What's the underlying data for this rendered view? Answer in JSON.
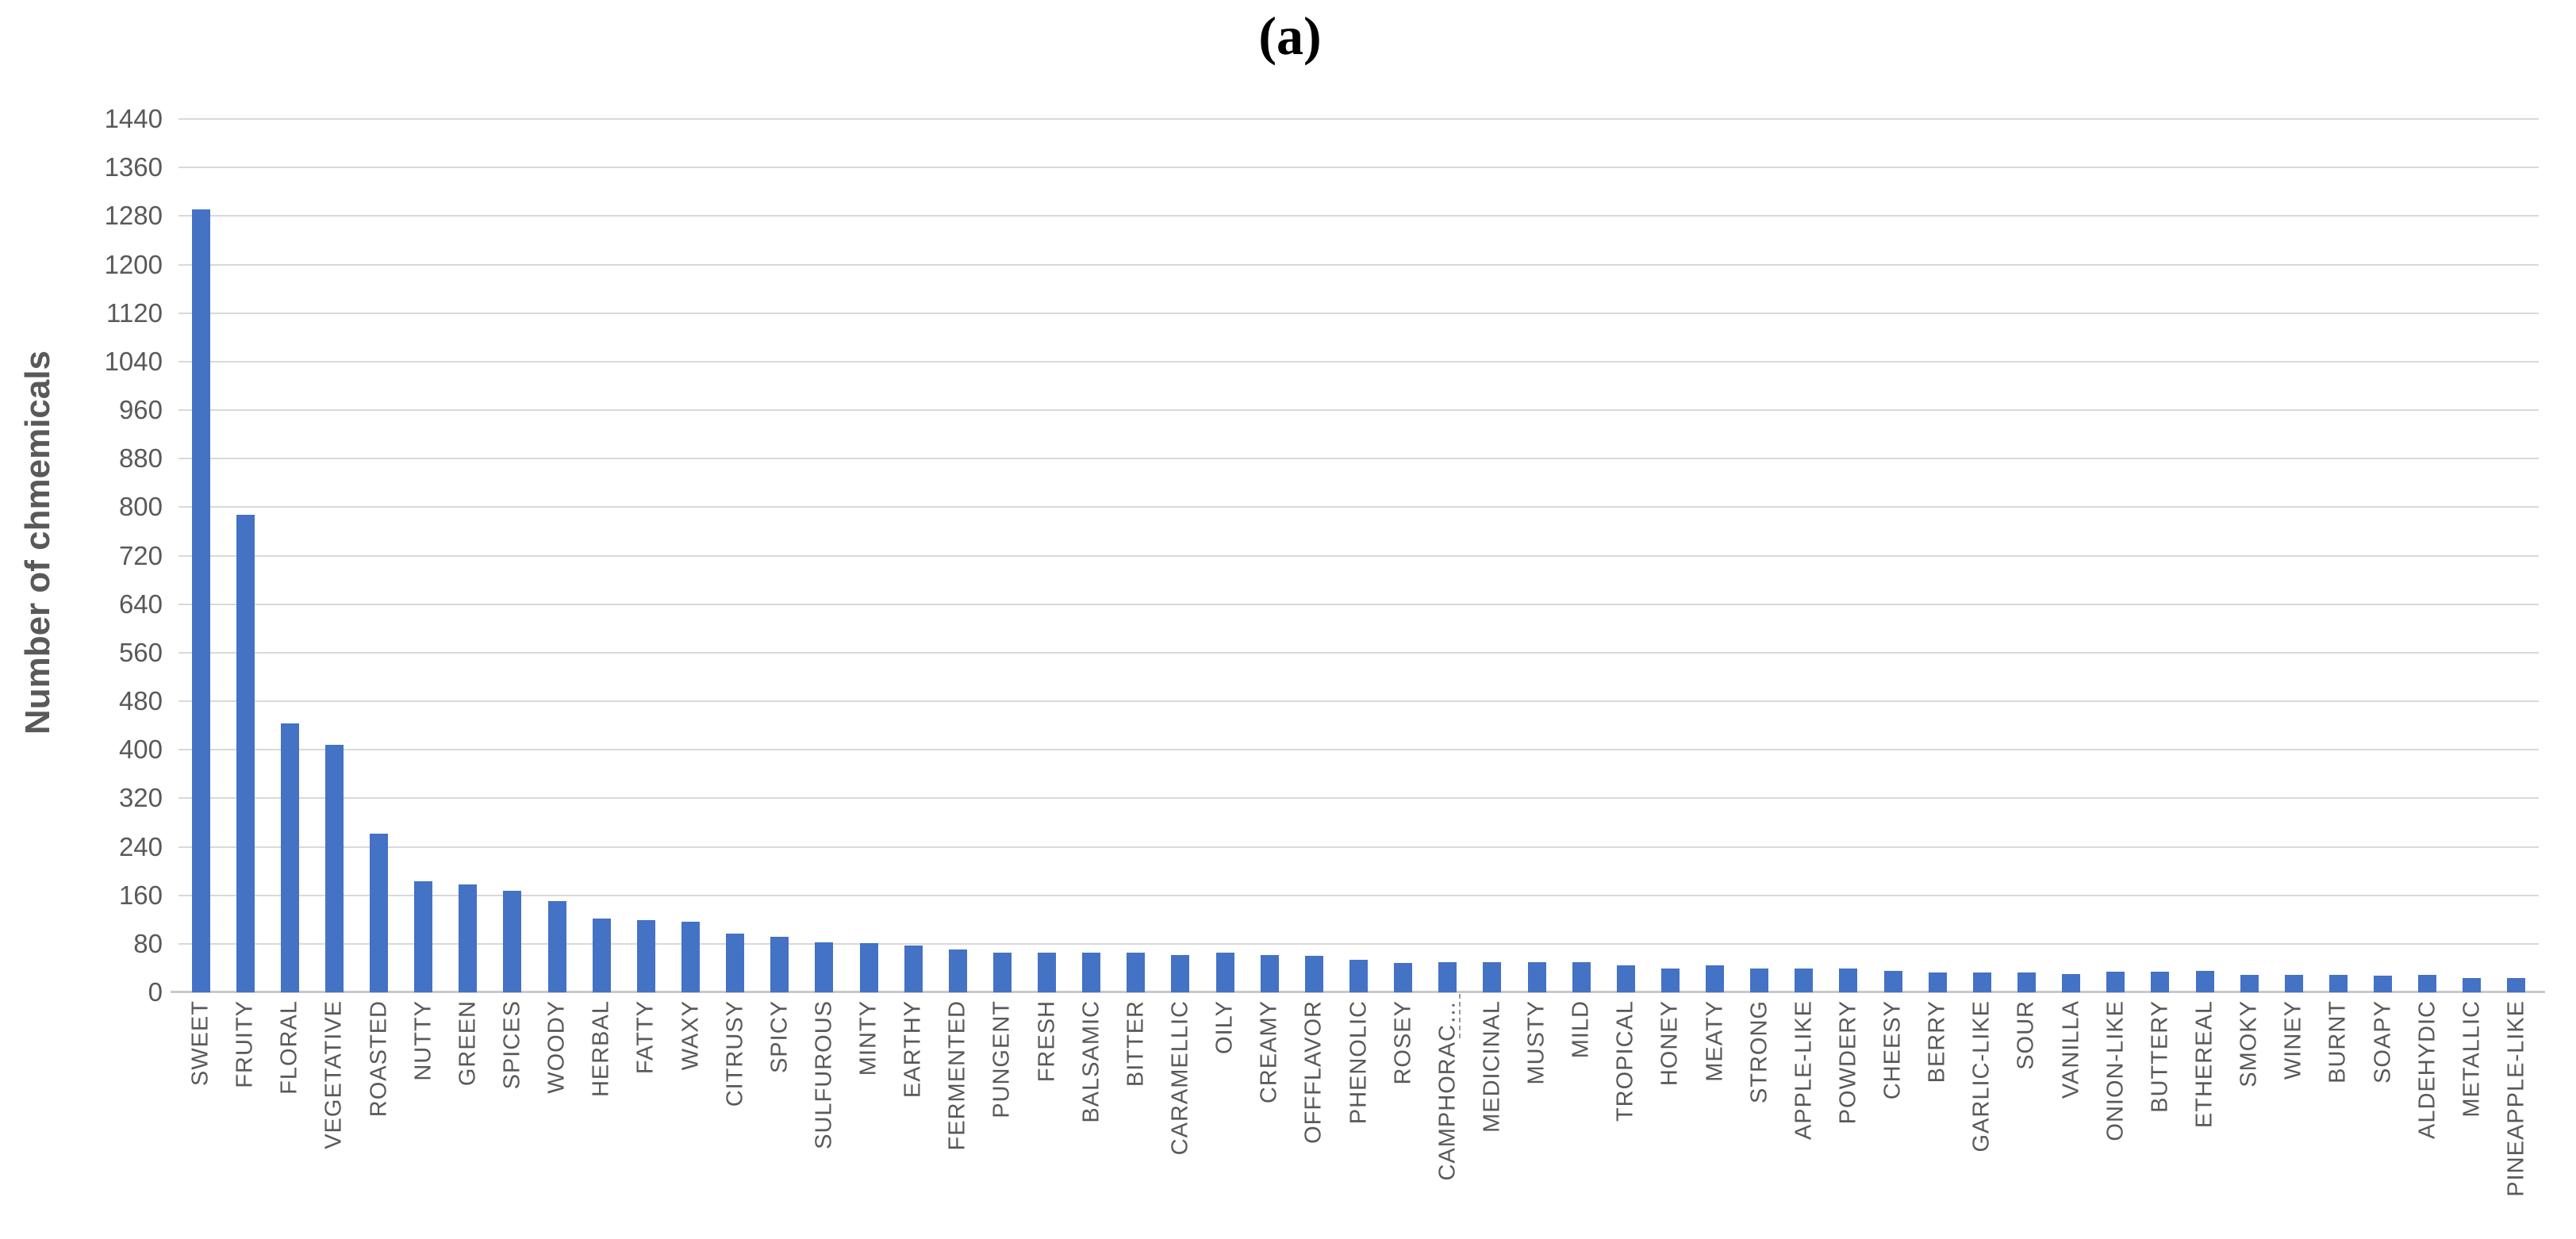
{
  "figure": {
    "panel_label": "(a)"
  },
  "chart_data": {
    "type": "bar",
    "title": "(a)",
    "xlabel": "",
    "ylabel": "Number of chmemicals",
    "ylim": [
      0,
      1440
    ],
    "ytick_step": 80,
    "grid": true,
    "legend": false,
    "bar_color": "#4472C4",
    "gridline_color": "#D9D9D9",
    "axis_text_color": "#595959",
    "categories": [
      "SWEET",
      "FRUITY",
      "FLORAL",
      "VEGETATIVE",
      "ROASTED",
      "NUTTY",
      "GREEN",
      "SPICES",
      "WOODY",
      "HERBAL",
      "FATTY",
      "WAXY",
      "CITRUSY",
      "SPICY",
      "SULFUROUS",
      "MINTY",
      "EARTHY",
      "FERMENTED",
      "PUNGENT",
      "FRESH",
      "BALSAMIC",
      "BITTER",
      "CARAMELLIC",
      "OILY",
      "CREAMY",
      "OFFFLAVOR",
      "PHENOLIC",
      "ROSEY",
      "CAMPHORAC…",
      "MEDICINAL",
      "MUSTY",
      "MILD",
      "TROPICAL",
      "HONEY",
      "MEATY",
      "STRONG",
      "APPLE-LIKE",
      "POWDERY",
      "CHEESY",
      "BERRY",
      "GARLIC-LIKE",
      "SOUR",
      "VANILLA",
      "ONION-LIKE",
      "BUTTERY",
      "ETHEREAL",
      "SMOKY",
      "WINEY",
      "BURNT",
      "SOAPY",
      "ALDEHYDIC",
      "METALLIC",
      "PINEAPPLE-LIKE"
    ],
    "values": [
      1291,
      788,
      443,
      408,
      262,
      183,
      178,
      168,
      150,
      122,
      119,
      117,
      97,
      92,
      83,
      81,
      77,
      71,
      66,
      65,
      65,
      65,
      61,
      65,
      61,
      60,
      53,
      49,
      50,
      50,
      50,
      50,
      44,
      39,
      44,
      39,
      39,
      39,
      35,
      33,
      33,
      33,
      30,
      34,
      34,
      35,
      29,
      29,
      29,
      28,
      29,
      24,
      23
    ]
  }
}
